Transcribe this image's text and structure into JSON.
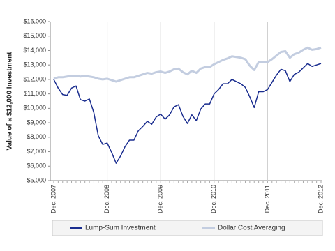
{
  "chart_data": {
    "type": "line",
    "y_label": "Value of a $12,000 Investment",
    "categories": [
      "Dec. 2007",
      null,
      null,
      null,
      null,
      null,
      null,
      null,
      null,
      null,
      null,
      null,
      "Dec. 2008",
      null,
      null,
      null,
      null,
      null,
      null,
      null,
      null,
      null,
      null,
      null,
      "Dec. 2009",
      null,
      null,
      null,
      null,
      null,
      null,
      null,
      null,
      null,
      null,
      null,
      "Dec. 2010",
      null,
      null,
      null,
      null,
      null,
      null,
      null,
      null,
      null,
      null,
      null,
      "Dec. 2011",
      null,
      null,
      null,
      null,
      null,
      null,
      null,
      null,
      null,
      null,
      null,
      "Dec. 2012"
    ],
    "series": [
      {
        "name": "Dollar Cost Averaging",
        "color": "#c3cde0",
        "width": 3,
        "values": [
          12050,
          12150,
          12150,
          12200,
          12250,
          12250,
          12200,
          12250,
          12200,
          12150,
          12050,
          12000,
          12050,
          11950,
          11850,
          11950,
          12050,
          12150,
          12150,
          12250,
          12350,
          12450,
          12400,
          12500,
          12550,
          12450,
          12550,
          12700,
          12750,
          12500,
          12350,
          12600,
          12450,
          12750,
          12850,
          12850,
          13050,
          13200,
          13350,
          13450,
          13600,
          13550,
          13500,
          13400,
          12950,
          12650,
          13200,
          13200,
          13200,
          13400,
          13650,
          13900,
          13950,
          13500,
          13750,
          13850,
          14050,
          14200,
          14050,
          14100,
          14200
        ]
      },
      {
        "name": "Lump-Sum Investment",
        "color": "#1a2d8f",
        "width": 1.5,
        "values": [
          12000,
          11400,
          10950,
          10900,
          11400,
          11550,
          10600,
          10500,
          10650,
          9700,
          8100,
          7500,
          7600,
          6950,
          6200,
          6700,
          7350,
          7800,
          7800,
          8450,
          8750,
          9100,
          8900,
          9400,
          9600,
          9250,
          9550,
          10100,
          10250,
          9450,
          8950,
          9550,
          9150,
          9950,
          10300,
          10300,
          11000,
          11300,
          11700,
          11700,
          12000,
          11850,
          11700,
          11450,
          10800,
          10050,
          11150,
          11150,
          11300,
          11800,
          12300,
          12700,
          12600,
          11850,
          12350,
          12500,
          12800,
          13100,
          12900,
          13000,
          13100
        ]
      }
    ],
    "legend_order": [
      1,
      0
    ],
    "legend": "bottom",
    "ylim": [
      5000,
      16000
    ],
    "yticks": [
      {
        "value": 5000,
        "label": "$5,000"
      },
      {
        "value": 6000,
        "label": "$6,000"
      },
      {
        "value": 7000,
        "label": "$7,000"
      },
      {
        "value": 8000,
        "label": "$8,000"
      },
      {
        "value": 9000,
        "label": "$9,000"
      },
      {
        "value": 10000,
        "label": "$10,000"
      },
      {
        "value": 11000,
        "label": "$11,000"
      },
      {
        "value": 12000,
        "label": "$12,000"
      },
      {
        "value": 13000,
        "label": "$13,000"
      },
      {
        "value": 14000,
        "label": "$14,000"
      },
      {
        "value": 15000,
        "label": "$15,000"
      },
      {
        "value": 16000,
        "label": "$16,000"
      }
    ],
    "grid": "x"
  }
}
